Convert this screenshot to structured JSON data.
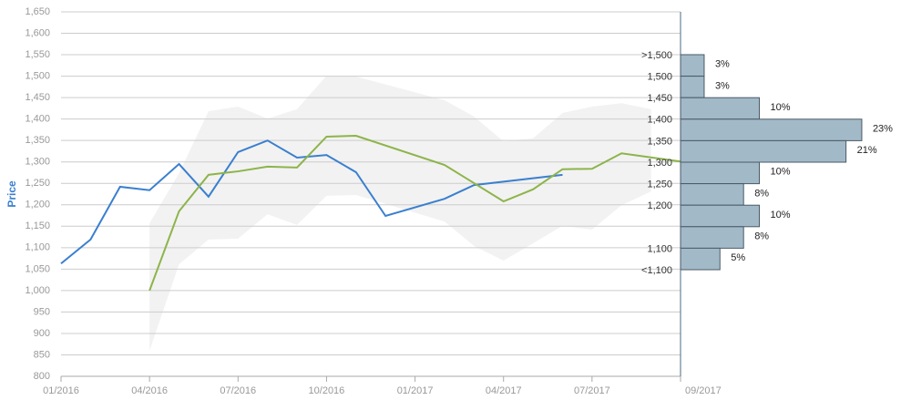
{
  "chart_data": [
    {
      "type": "line",
      "y_label": "Price",
      "xlim": [
        0,
        21
      ],
      "ylim": [
        800,
        1650
      ],
      "xticks": [
        {
          "value": 0,
          "label": "01/2016"
        },
        {
          "value": 3,
          "label": "04/2016"
        },
        {
          "value": 6,
          "label": "07/2016"
        },
        {
          "value": 9,
          "label": "10/2016"
        },
        {
          "value": 12,
          "label": "01/2017"
        },
        {
          "value": 15,
          "label": "04/2017"
        },
        {
          "value": 18,
          "label": "07/2017"
        },
        {
          "value": 21,
          "label": "09/2017"
        }
      ],
      "yticks": [
        800,
        850,
        900,
        950,
        {
          "value": 1000,
          "label": "1,000"
        },
        {
          "value": 1050,
          "label": "1,050"
        },
        {
          "value": 1100,
          "label": "1,100"
        },
        {
          "value": 1150,
          "label": "1,150"
        },
        {
          "value": 1200,
          "label": "1,200"
        },
        {
          "value": 1250,
          "label": "1,250"
        },
        {
          "value": 1300,
          "label": "1,300"
        },
        {
          "value": 1350,
          "label": "1,350"
        },
        {
          "value": 1400,
          "label": "1,400"
        },
        {
          "value": 1450,
          "label": "1,450"
        },
        {
          "value": 1500,
          "label": "1,500"
        },
        {
          "value": 1550,
          "label": "1,550"
        },
        {
          "value": 1600,
          "label": "1,600"
        },
        {
          "value": 1650,
          "label": "1,650"
        }
      ],
      "grid": true,
      "band": {
        "color": "#f2f2f2",
        "x": [
          3,
          4,
          5,
          6,
          7,
          8,
          9,
          10,
          13,
          14,
          15,
          16,
          17,
          18,
          19,
          20
        ],
        "upper": [
          1157,
          1274,
          1418,
          1429,
          1401,
          1423,
          1501,
          1499,
          1444,
          1406,
          1348,
          1355,
          1414,
          1429,
          1437,
          1423
        ],
        "lower": [
          860,
          1061,
          1119,
          1121,
          1178,
          1153,
          1221,
          1223,
          1161,
          1104,
          1070,
          1110,
          1151,
          1142,
          1199,
          1231
        ]
      },
      "series": [
        {
          "color": "#3a7fcf",
          "x": [
            0,
            1,
            2,
            3,
            4,
            5,
            6,
            7,
            8,
            9,
            10,
            11,
            13,
            14,
            17
          ],
          "values": [
            1063,
            1119,
            1242,
            1234,
            1295,
            1219,
            1323,
            1350,
            1310,
            1316,
            1276,
            1174,
            1214,
            1246,
            1270
          ]
        },
        {
          "color": "#8db44a",
          "x": [
            3,
            4,
            5,
            6,
            7,
            8,
            9,
            10,
            13,
            15,
            16,
            17,
            18,
            19,
            21
          ],
          "values": [
            1000,
            1185,
            1270,
            1278,
            1289,
            1287,
            1359,
            1361,
            1293,
            1208,
            1236,
            1283,
            1284,
            1320,
            1301
          ]
        }
      ]
    },
    {
      "type": "histogram",
      "color": "#a2b9c8",
      "border": "#4a5a66",
      "bins": [
        ">1,500",
        "1,500",
        "1,450",
        "1,400",
        "1,350",
        "1,300",
        "1,250",
        "1,200",
        null,
        "1,100",
        "<1,100"
      ],
      "values": [
        3,
        3,
        10,
        23,
        21,
        10,
        8,
        10,
        8,
        5
      ],
      "value_labels": [
        "3%",
        "3%",
        "10%",
        "23%",
        "21%",
        "10%",
        "8%",
        "10%",
        "8%",
        "5%"
      ]
    }
  ]
}
